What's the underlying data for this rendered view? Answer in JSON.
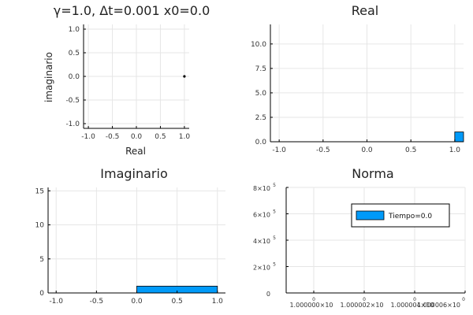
{
  "chart_data": [
    {
      "type": "scatter",
      "title": "γ=1.0,   Δt=0.001  x0=0.0",
      "xlabel": "Real",
      "ylabel": "imaginario",
      "xlim": [
        -1.1,
        1.1
      ],
      "ylim": [
        -1.1,
        1.1
      ],
      "x_ticks": [
        "-1.0",
        "-0.5",
        "0.0",
        "0.5",
        "1.0"
      ],
      "y_ticks": [
        "-1.0",
        "-0.5",
        "0.0",
        "0.5",
        "1.0"
      ],
      "points": [
        {
          "x": 1.0,
          "y": 0.0
        }
      ],
      "grid": true
    },
    {
      "type": "bar",
      "title": "Real",
      "xlabel": "",
      "ylabel": "",
      "xlim": [
        -1.1,
        1.1
      ],
      "ylim": [
        0,
        12
      ],
      "x_ticks": [
        "-1.0",
        "-0.5",
        "0.0",
        "0.5",
        "1.0"
      ],
      "y_ticks": [
        "0.0",
        "2.5",
        "5.0",
        "7.5",
        "10.0"
      ],
      "bars": [
        {
          "x0": 1.0,
          "x1": 1.1,
          "value": 1
        }
      ],
      "grid": true,
      "color": "#009af9"
    },
    {
      "type": "bar",
      "title": "Imaginario",
      "xlabel": "",
      "ylabel": "",
      "xlim": [
        -1.1,
        1.1
      ],
      "ylim": [
        0,
        15.5
      ],
      "x_ticks": [
        "-1.0",
        "-0.5",
        "0.0",
        "0.5",
        "1.0"
      ],
      "y_ticks": [
        "0",
        "5",
        "10",
        "15"
      ],
      "bars": [
        {
          "x0": 0.0,
          "x1": 1.0,
          "value": 1
        }
      ],
      "grid": true,
      "color": "#009af9"
    },
    {
      "type": "bar",
      "title": "Norma",
      "xlabel": "",
      "ylabel": "",
      "ylim": [
        0,
        800000
      ],
      "y_ticks": [
        {
          "base": "0",
          "exp": ""
        },
        {
          "base": "2×10",
          "exp": "5"
        },
        {
          "base": "4×10",
          "exp": "5"
        },
        {
          "base": "6×10",
          "exp": "5"
        },
        {
          "base": "8×10",
          "exp": "5"
        }
      ],
      "x_ticks": [
        {
          "base": "1.000000×10",
          "exp": "0"
        },
        {
          "base": "1.000002×10",
          "exp": "0"
        },
        {
          "base": "1.000004×10",
          "exp": "0"
        },
        {
          "base": "1.000006×10",
          "exp": "0"
        }
      ],
      "series": [
        {
          "name": "Tiempo=0.0",
          "values": []
        }
      ],
      "legend": "top-right",
      "grid": true,
      "color": "#009af9"
    }
  ]
}
